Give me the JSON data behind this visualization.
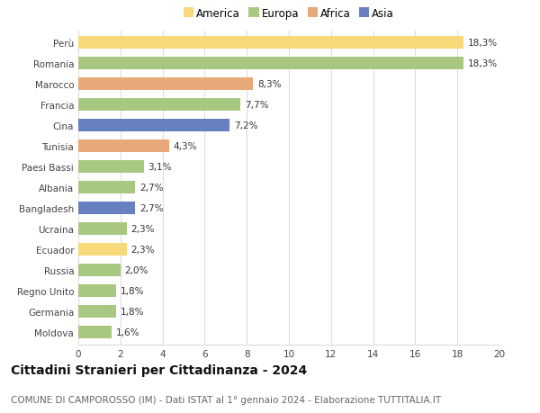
{
  "countries": [
    "Perù",
    "Romania",
    "Marocco",
    "Francia",
    "Cina",
    "Tunisia",
    "Paesi Bassi",
    "Albania",
    "Bangladesh",
    "Ucraina",
    "Ecuador",
    "Russia",
    "Regno Unito",
    "Germania",
    "Moldova"
  ],
  "values": [
    18.3,
    18.3,
    8.3,
    7.7,
    7.2,
    4.3,
    3.1,
    2.7,
    2.7,
    2.3,
    2.3,
    2.0,
    1.8,
    1.8,
    1.6
  ],
  "labels": [
    "18,3%",
    "18,3%",
    "8,3%",
    "7,7%",
    "7,2%",
    "4,3%",
    "3,1%",
    "2,7%",
    "2,7%",
    "2,3%",
    "2,3%",
    "2,0%",
    "1,8%",
    "1,8%",
    "1,6%"
  ],
  "continents": [
    "America",
    "Europa",
    "Africa",
    "Europa",
    "Asia",
    "Africa",
    "Europa",
    "Europa",
    "Asia",
    "Europa",
    "America",
    "Europa",
    "Europa",
    "Europa",
    "Europa"
  ],
  "colors": {
    "America": "#F8D97A",
    "Europa": "#A8C882",
    "Africa": "#E8A878",
    "Asia": "#6680C0"
  },
  "xlim": [
    0,
    20
  ],
  "xticks": [
    0,
    2,
    4,
    6,
    8,
    10,
    12,
    14,
    16,
    18,
    20
  ],
  "title": "Cittadini Stranieri per Cittadinanza - 2024",
  "subtitle": "COMUNE DI CAMPOROSSO (IM) - Dati ISTAT al 1° gennaio 2024 - Elaborazione TUTTITALIA.IT",
  "title_fontsize": 10,
  "subtitle_fontsize": 7.5,
  "label_fontsize": 7.5,
  "tick_fontsize": 7.5,
  "legend_fontsize": 8.5,
  "background_color": "#ffffff",
  "grid_color": "#dddddd",
  "bar_height": 0.6
}
